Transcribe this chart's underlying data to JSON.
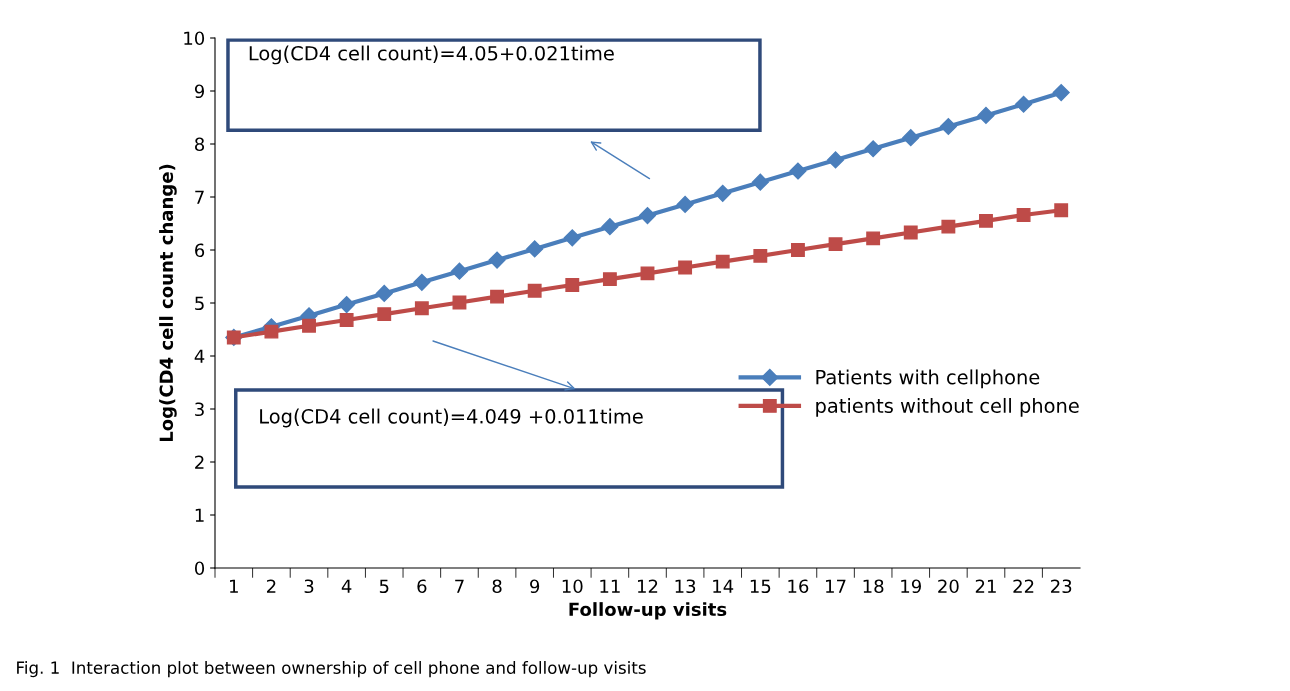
{
  "chart_data": {
    "type": "line",
    "xlabel": "Follow-up visits",
    "ylabel": "Log(CD4 cell count change)",
    "categories": [
      "1",
      "2",
      "3",
      "4",
      "5",
      "6",
      "7",
      "8",
      "9",
      "10",
      "11",
      "12",
      "13",
      "14",
      "15",
      "16",
      "17",
      "18",
      "19",
      "20",
      "21",
      "22",
      "23"
    ],
    "series": [
      {
        "name": "Patients with cellphone",
        "color": "#4a7ebb",
        "marker": "diamond",
        "values": [
          4.35,
          4.55,
          4.76,
          4.97,
          5.18,
          5.39,
          5.6,
          5.81,
          6.02,
          6.23,
          6.44,
          6.65,
          6.86,
          7.07,
          7.28,
          7.49,
          7.7,
          7.91,
          8.12,
          8.33,
          8.54,
          8.75,
          8.97
        ]
      },
      {
        "name": "patients without cell phone",
        "color": "#be4b48",
        "marker": "square",
        "values": [
          4.35,
          4.46,
          4.57,
          4.68,
          4.79,
          4.9,
          5.01,
          5.12,
          5.23,
          5.34,
          5.45,
          5.56,
          5.67,
          5.78,
          5.89,
          6.0,
          6.11,
          6.22,
          6.33,
          6.44,
          6.55,
          6.66,
          6.75
        ]
      }
    ],
    "ylim": [
      0,
      10
    ],
    "yticks": [
      0,
      1,
      2,
      3,
      4,
      5,
      6,
      7,
      8,
      9,
      10
    ],
    "grid": false,
    "legend": "right",
    "annotations": [
      "Log(CD4 cell count)=4.05+0.021time",
      "Log(CD4 cell count)=4.049 +0.011time",
      "Fig. 1  Interaction plot between ownership of cell phone and follow-up visits"
    ]
  }
}
